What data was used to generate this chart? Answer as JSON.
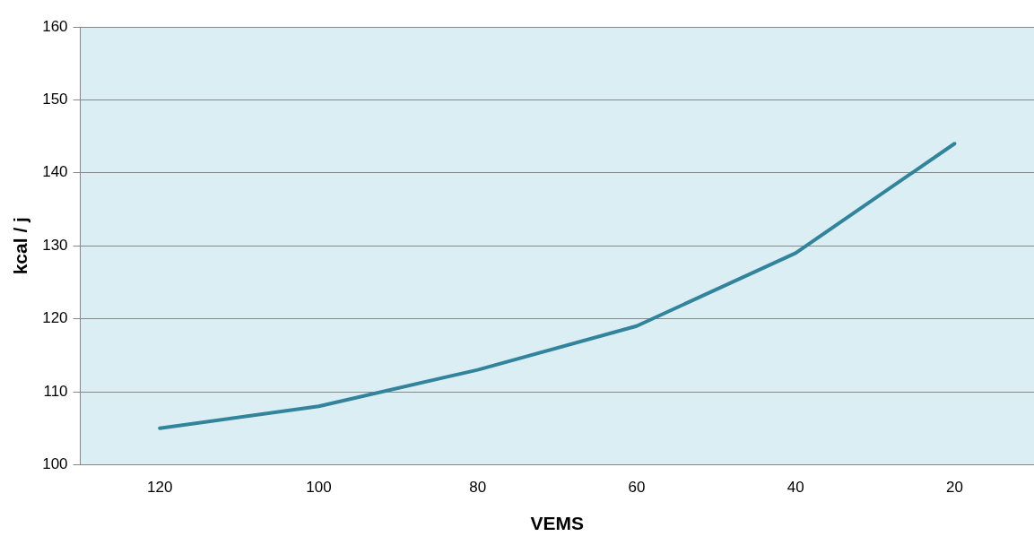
{
  "chart_data": {
    "type": "line",
    "xlabel": "VEMS",
    "ylabel": "kcal / j",
    "categories": [
      "120",
      "100",
      "80",
      "60",
      "40",
      "20"
    ],
    "series": [
      {
        "color": "#31849b",
        "values": [
          105,
          108,
          113,
          119,
          129,
          144
        ]
      }
    ],
    "ylim": [
      100,
      160
    ],
    "yticks": [
      100,
      110,
      120,
      130,
      140,
      150,
      160
    ],
    "grid": "y",
    "legend": false,
    "marker": "none",
    "line_style": "solid"
  }
}
